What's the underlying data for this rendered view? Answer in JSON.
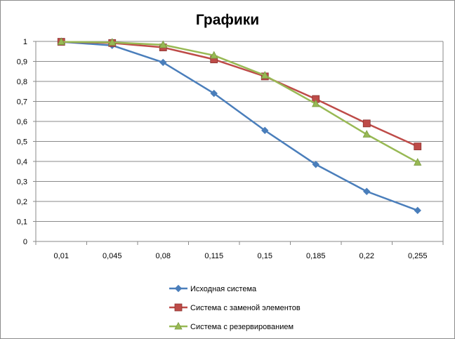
{
  "chart_data": {
    "type": "line",
    "title": "Графики",
    "categories": [
      "0,01",
      "0,045",
      "0,08",
      "0,115",
      "0,15",
      "0,185",
      "0,22",
      "0,255"
    ],
    "ylim": [
      0,
      1
    ],
    "yticks": [
      "0",
      "0,1",
      "0,2",
      "0,3",
      "0,4",
      "0,5",
      "0,6",
      "0,7",
      "0,8",
      "0,9",
      "1"
    ],
    "grid": "horizontal",
    "legend_position": "bottom",
    "series": [
      {
        "name": "Исходная система",
        "color": "#4a7ebb",
        "marker": "diamond",
        "values": [
          0.998,
          0.98,
          0.895,
          0.74,
          0.555,
          0.385,
          0.25,
          0.155
        ]
      },
      {
        "name": "Система с заменой элементов",
        "color": "#be4b48",
        "marker": "square",
        "values": [
          0.998,
          0.992,
          0.97,
          0.91,
          0.825,
          0.712,
          0.59,
          0.475
        ]
      },
      {
        "name": "Система с резервированием",
        "color": "#98b954",
        "marker": "triangle",
        "values": [
          0.998,
          0.995,
          0.983,
          0.93,
          0.83,
          0.688,
          0.535,
          0.395
        ]
      }
    ]
  }
}
